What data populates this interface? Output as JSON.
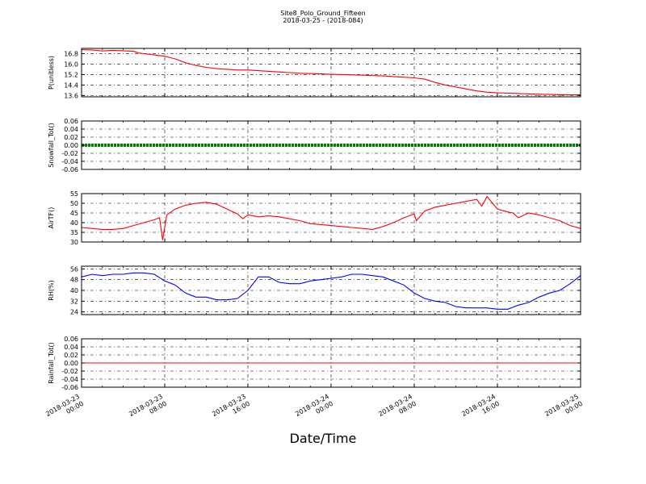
{
  "title": "Site8_Polo_Ground_Fifteen",
  "subtitle": "2018-03-25 - (2018-084)",
  "xlabel": "Date/Time",
  "x_ticks": [
    {
      "l1": "2018-03-23",
      "l2": "00:00"
    },
    {
      "l1": "2018-03-23",
      "l2": "08:00"
    },
    {
      "l1": "2018-03-23",
      "l2": "16:00"
    },
    {
      "l1": "2018-03-24",
      "l2": "00:00"
    },
    {
      "l1": "2018-03-24",
      "l2": "08:00"
    },
    {
      "l1": "2018-03-24",
      "l2": "16:00"
    },
    {
      "l1": "2018-03-25",
      "l2": "00:00"
    }
  ],
  "chart_data": [
    {
      "type": "line",
      "ylabel": "P(unitless)",
      "ylim": [
        13.5,
        17.2
      ],
      "yticks": [
        "16.8",
        "16.0",
        "15.2",
        "14.4",
        "13.6"
      ],
      "grid": true,
      "series": [
        {
          "color": "#ff0000",
          "x": [
            0,
            1,
            2,
            3,
            4,
            5,
            5.5,
            6,
            7,
            8,
            9,
            10,
            11,
            12,
            13,
            14,
            15,
            16,
            17,
            18,
            19,
            20,
            21,
            22,
            23,
            24,
            25,
            26,
            27,
            28,
            29,
            30,
            31,
            32,
            33,
            34,
            35,
            36,
            37,
            38,
            39,
            40,
            41,
            42,
            43,
            44,
            45,
            46,
            47,
            48
          ],
          "y": [
            17.1,
            17.08,
            17.0,
            17.05,
            17.02,
            16.98,
            16.85,
            16.8,
            16.7,
            16.6,
            16.4,
            16.1,
            15.9,
            15.75,
            15.65,
            15.6,
            15.55,
            15.55,
            15.5,
            15.45,
            15.4,
            15.35,
            15.3,
            15.28,
            15.25,
            15.22,
            15.2,
            15.18,
            15.15,
            15.12,
            15.1,
            15.05,
            15.0,
            14.95,
            14.85,
            14.6,
            14.4,
            14.25,
            14.1,
            13.95,
            13.85,
            13.8,
            13.78,
            13.75,
            13.72,
            13.7,
            13.68,
            13.66,
            13.65,
            13.65
          ]
        }
      ]
    },
    {
      "type": "line",
      "ylabel": "Snowfall_Tot()",
      "ylim": [
        -0.06,
        0.06
      ],
      "yticks": [
        "0.06",
        "0.04",
        "0.02",
        "0.00",
        "-0.02",
        "-0.04",
        "-0.06"
      ],
      "grid": true,
      "series": [
        {
          "color": "#008000",
          "x": [
            0,
            48
          ],
          "y": [
            0,
            0
          ],
          "thick": true
        }
      ]
    },
    {
      "type": "line",
      "ylabel": "AirTF()",
      "ylim": [
        30,
        55
      ],
      "yticks": [
        "55",
        "50",
        "45",
        "40",
        "35",
        "30"
      ],
      "grid": true,
      "series": [
        {
          "color": "#ff0000",
          "x": [
            0,
            1,
            2,
            3,
            4,
            5,
            6,
            7,
            7.5,
            7.8,
            8.2,
            9,
            10,
            11,
            12,
            13,
            14,
            15,
            15.5,
            16,
            16.5,
            17,
            18,
            19,
            20,
            21,
            22,
            23,
            24,
            25,
            26,
            27,
            28,
            29,
            30,
            31,
            32,
            32.2,
            33,
            34,
            35,
            36,
            37,
            38,
            38.5,
            39,
            40,
            41,
            41.5,
            42,
            43,
            44,
            45,
            46,
            47,
            48
          ],
          "y": [
            37.5,
            37.0,
            36.5,
            36.5,
            37.0,
            38.5,
            40.0,
            41.5,
            42.5,
            31.0,
            44.0,
            47.0,
            49.0,
            50.0,
            50.5,
            49.5,
            47.0,
            44.5,
            42.0,
            44.0,
            43.5,
            43.0,
            43.5,
            43.0,
            42.0,
            41.0,
            39.5,
            39.0,
            38.5,
            38.0,
            37.5,
            37.0,
            36.5,
            38.0,
            40.0,
            42.5,
            44.5,
            41.0,
            46.0,
            48.0,
            49.0,
            50.0,
            51.0,
            52.0,
            48.5,
            53.5,
            47.0,
            45.5,
            45.0,
            42.5,
            45.0,
            44.0,
            42.5,
            41.0,
            38.5,
            37.0
          ]
        }
      ]
    },
    {
      "type": "line",
      "ylabel": "RH(%)",
      "ylim": [
        22,
        58
      ],
      "yticks": [
        "56",
        "48",
        "40",
        "32",
        "24"
      ],
      "grid": true,
      "series": [
        {
          "color": "#0000ff",
          "x": [
            0,
            1,
            2,
            3,
            4,
            5,
            6,
            7,
            8,
            9,
            10,
            11,
            12,
            13,
            14,
            15,
            16,
            17,
            18,
            19,
            20,
            21,
            22,
            23,
            24,
            25,
            26,
            27,
            28,
            29,
            30,
            31,
            32,
            33,
            34,
            35,
            36,
            37,
            38,
            39,
            40,
            41,
            42,
            43,
            44,
            45,
            46,
            47,
            48
          ],
          "y": [
            50,
            52,
            51,
            52,
            52,
            53,
            53,
            52,
            47,
            44,
            38,
            35,
            35,
            33,
            33,
            34,
            40,
            50,
            50,
            46,
            45,
            45,
            47,
            48,
            49,
            50,
            52,
            52,
            51,
            50,
            47,
            44,
            38,
            34,
            32,
            31,
            28,
            27,
            27,
            27,
            26,
            26,
            29,
            31,
            35,
            38,
            40,
            45,
            51
          ]
        }
      ]
    },
    {
      "type": "line",
      "ylabel": "Rainfall_Tot()",
      "ylim": [
        -0.06,
        0.06
      ],
      "yticks": [
        "0.06",
        "0.04",
        "0.02",
        "0.00",
        "-0.02",
        "-0.04",
        "-0.06"
      ],
      "grid": true,
      "series": [
        {
          "color": "#ff0000",
          "x": [
            0,
            48
          ],
          "y": [
            0,
            0
          ]
        }
      ]
    }
  ]
}
